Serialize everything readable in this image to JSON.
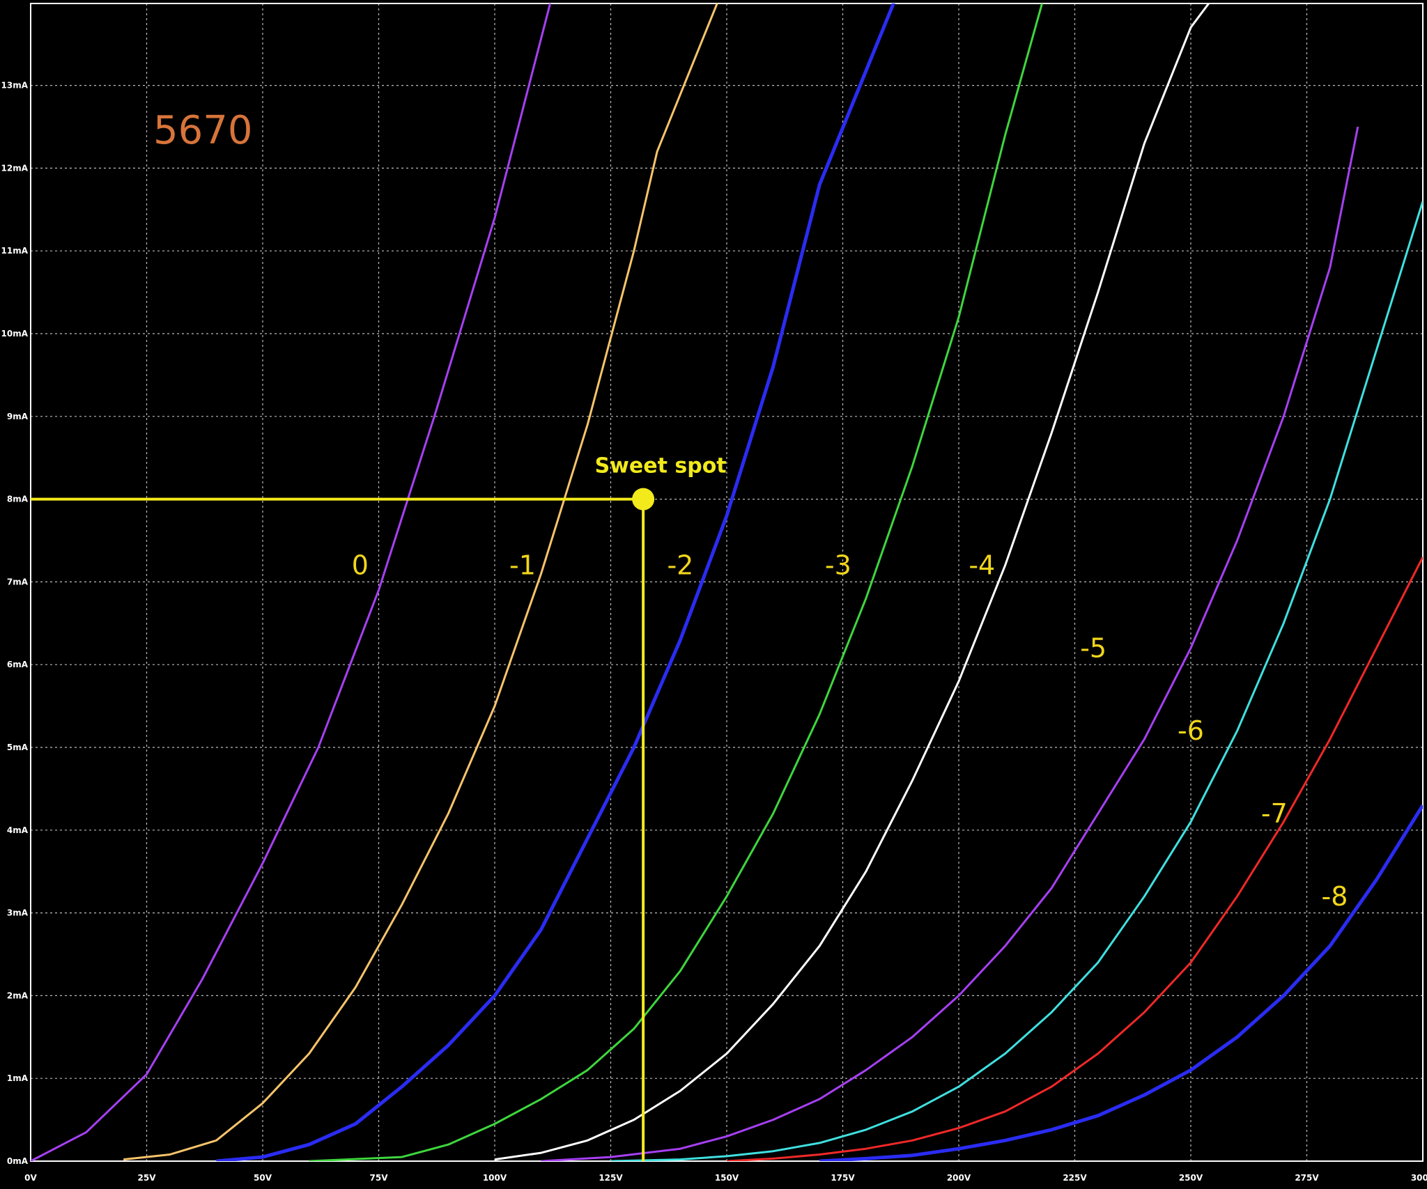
{
  "chart_data": {
    "type": "line",
    "title": "5670",
    "xlabel": "",
    "ylabel": "",
    "xlim": [
      0,
      300
    ],
    "ylim": [
      0,
      14
    ],
    "x_unit": "V",
    "y_unit": "mA",
    "grid": true,
    "x_ticks": [
      "0V",
      "25V",
      "50V",
      "75V",
      "100V",
      "125V",
      "150V",
      "175V",
      "200V",
      "225V",
      "250V",
      "275V",
      "300V"
    ],
    "y_ticks": [
      "0mA",
      "1mA",
      "2mA",
      "3mA",
      "4mA",
      "5mA",
      "6mA",
      "7mA",
      "8mA",
      "9mA",
      "10mA",
      "11mA",
      "12mA",
      "13mA"
    ],
    "colors": {
      "background": "#000000",
      "grid": "#bdbdbd",
      "axis": "#ffffff",
      "label": "#f2d61b",
      "title": "#d8743a",
      "marker": "#f2ea1b"
    },
    "series": [
      {
        "label": "0",
        "color": "#a640f2",
        "x": [
          0,
          12,
          25,
          37,
          50,
          62,
          75,
          87,
          100,
          112
        ],
        "y": [
          0,
          0.35,
          1.05,
          2.2,
          3.6,
          5.0,
          6.9,
          9.0,
          11.4,
          14.0
        ]
      },
      {
        "label": "-1",
        "color": "#f7c46a",
        "x": [
          20,
          30,
          40,
          50,
          60,
          70,
          80,
          90,
          100,
          110,
          120,
          130,
          135,
          148
        ],
        "y": [
          0.02,
          0.08,
          0.25,
          0.7,
          1.3,
          2.1,
          3.1,
          4.2,
          5.5,
          7.1,
          8.9,
          11.0,
          12.2,
          14.0
        ]
      },
      {
        "label": "-2",
        "color": "#2a2cf2",
        "x": [
          40,
          50,
          60,
          70,
          80,
          90,
          100,
          110,
          120,
          130,
          140,
          150,
          160,
          170,
          186
        ],
        "y": [
          0,
          0.05,
          0.2,
          0.45,
          0.9,
          1.4,
          2.0,
          2.8,
          3.9,
          5.0,
          6.3,
          7.8,
          9.6,
          11.8,
          14.0
        ]
      },
      {
        "label": "-3",
        "color": "#3ed63e",
        "x": [
          60,
          80,
          90,
          100,
          110,
          120,
          130,
          140,
          150,
          160,
          170,
          180,
          190,
          200,
          210,
          218
        ],
        "y": [
          0,
          0.05,
          0.2,
          0.45,
          0.75,
          1.1,
          1.6,
          2.3,
          3.2,
          4.2,
          5.4,
          6.8,
          8.4,
          10.2,
          12.4,
          14.0
        ]
      },
      {
        "label": "-4",
        "color": "#ffffff",
        "x": [
          100,
          110,
          120,
          130,
          140,
          150,
          160,
          170,
          180,
          190,
          200,
          210,
          220,
          230,
          240,
          250,
          254
        ],
        "y": [
          0.02,
          0.1,
          0.25,
          0.5,
          0.85,
          1.3,
          1.9,
          2.6,
          3.5,
          4.6,
          5.8,
          7.2,
          8.8,
          10.5,
          12.3,
          13.7,
          14.0
        ]
      },
      {
        "label": "-5",
        "color": "#a640f2",
        "x": [
          110,
          125,
          140,
          150,
          160,
          170,
          180,
          190,
          200,
          210,
          220,
          230,
          240,
          250,
          260,
          270,
          280,
          286
        ],
        "y": [
          0,
          0.05,
          0.15,
          0.3,
          0.5,
          0.75,
          1.1,
          1.5,
          2.0,
          2.6,
          3.3,
          4.2,
          5.1,
          6.2,
          7.5,
          9.0,
          10.8,
          12.5
        ]
      },
      {
        "label": "-6",
        "color": "#40e0e0",
        "x": [
          125,
          140,
          150,
          160,
          170,
          180,
          190,
          200,
          210,
          220,
          230,
          240,
          250,
          260,
          270,
          280,
          290,
          300
        ],
        "y": [
          0,
          0.02,
          0.06,
          0.12,
          0.22,
          0.38,
          0.6,
          0.9,
          1.3,
          1.8,
          2.4,
          3.2,
          4.1,
          5.2,
          6.5,
          8.0,
          9.8,
          11.6
        ]
      },
      {
        "label": "-7",
        "color": "#f02828",
        "x": [
          150,
          160,
          170,
          180,
          190,
          200,
          210,
          220,
          230,
          240,
          250,
          260,
          270,
          280,
          290,
          300
        ],
        "y": [
          0,
          0.03,
          0.08,
          0.15,
          0.25,
          0.4,
          0.6,
          0.9,
          1.3,
          1.8,
          2.4,
          3.2,
          4.1,
          5.1,
          6.2,
          7.3
        ]
      },
      {
        "label": "-8",
        "color": "#2a2cf2",
        "x": [
          170,
          180,
          190,
          200,
          210,
          220,
          230,
          240,
          250,
          260,
          270,
          280,
          290,
          300
        ],
        "y": [
          0,
          0.03,
          0.07,
          0.15,
          0.25,
          0.38,
          0.55,
          0.8,
          1.1,
          1.5,
          2.0,
          2.6,
          3.4,
          4.3
        ]
      }
    ],
    "curve_labels": [
      {
        "text": "0",
        "x": 71,
        "y": 7.2
      },
      {
        "text": "-1",
        "x": 106,
        "y": 7.2
      },
      {
        "text": "-2",
        "x": 140,
        "y": 7.2
      },
      {
        "text": "-3",
        "x": 174,
        "y": 7.2
      },
      {
        "text": "-4",
        "x": 205,
        "y": 7.2
      },
      {
        "text": "-5",
        "x": 229,
        "y": 6.2
      },
      {
        "text": "-6",
        "x": 250,
        "y": 5.2
      },
      {
        "text": "-7",
        "x": 268,
        "y": 4.2
      },
      {
        "text": "-8",
        "x": 281,
        "y": 3.2
      }
    ],
    "annotation": {
      "text": "Sweet spot",
      "x": 132,
      "y": 8
    }
  }
}
